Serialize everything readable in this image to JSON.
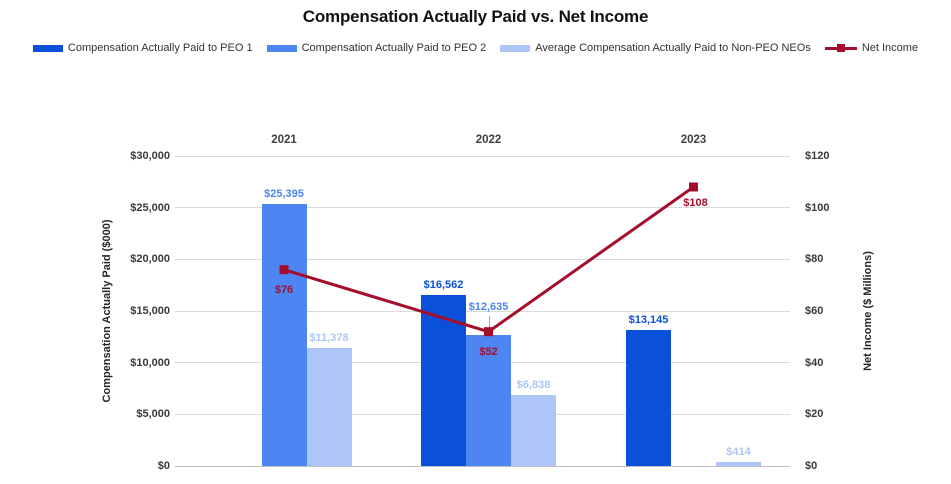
{
  "title": "Compensation Actually Paid vs. Net Income",
  "chart_data": {
    "type": "combo-bar-line",
    "title": "Compensation Actually Paid vs. Net Income",
    "categories": [
      "2021",
      "2022",
      "2023"
    ],
    "category_position": "top",
    "grid": true,
    "legend_position": "top",
    "bar_series": [
      {
        "name": "Compensation Actually Paid to PEO 1",
        "color": "#0b50d8",
        "values": [
          null,
          16562,
          13145
        ],
        "labels": [
          null,
          "$16,562",
          "$13,145"
        ]
      },
      {
        "name": "Compensation Actually Paid to PEO 2",
        "color": "#4d85f2",
        "values": [
          25395,
          12635,
          null
        ],
        "labels": [
          "$25,395",
          "$12,635",
          null
        ]
      },
      {
        "name": "Average Compensation Actually Paid to Non-PEO NEOs",
        "color": "#aec6f7",
        "values": [
          11378,
          6838,
          414
        ],
        "labels": [
          "$11,378",
          "$6,838",
          "$414"
        ]
      }
    ],
    "line_series": {
      "name": "Net Income",
      "color": "#a40e2c",
      "axis": "right",
      "values": [
        76,
        52,
        108
      ],
      "labels": [
        "$76",
        "$52",
        "$108"
      ]
    },
    "left_axis": {
      "title": "Compensation Actually Paid ($000)",
      "min": 0,
      "max": 30000,
      "step": 5000,
      "tick_labels": [
        "$0",
        "$5,000",
        "$10,000",
        "$15,000",
        "$20,000",
        "$25,000",
        "$30,000"
      ]
    },
    "right_axis": {
      "title": "Net Income ($ Millions)",
      "min": 0,
      "max": 120,
      "step": 20,
      "tick_labels": [
        "$0",
        "$20",
        "$40",
        "$60",
        "$80",
        "$100",
        "$120"
      ]
    }
  }
}
